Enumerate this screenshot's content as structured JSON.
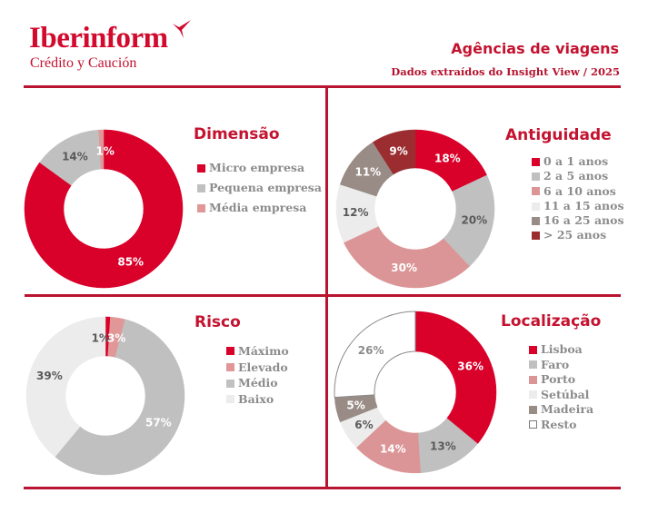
{
  "header": {
    "brand": "Iberinform",
    "brand_sub": "Crédito y Caución",
    "logo_icon": "bird-arrow-icon",
    "title": "Agências de viagens",
    "subtitle": "Dados extraídos do Insight View / 2025"
  },
  "colors": {
    "brand_red": "#d20a2e",
    "rule": "#b8132f",
    "legend_text": "#8c8c8c"
  },
  "chart_data": [
    {
      "id": "dimensao",
      "type": "pie",
      "donut": true,
      "title": "Dimensão",
      "legend_position": "right",
      "categories": [
        "Micro empresa",
        "Pequena empresa",
        "Média empresa"
      ],
      "values": [
        85,
        14,
        1
      ],
      "labels": [
        "85%",
        "14%",
        "1%"
      ],
      "colors": [
        "#d9002a",
        "#c0c0c0",
        "#e19797"
      ],
      "label_colors": [
        "#ffffff",
        "#5a5a5a",
        "#ffffff"
      ]
    },
    {
      "id": "antiguidade",
      "type": "pie",
      "donut": true,
      "title": "Antiguidade",
      "legend_position": "right",
      "categories": [
        "0 a 1 anos",
        "2 a 5 anos",
        "6 a 10 anos",
        "11 a 15 anos",
        "16 a 25 anos",
        "> 25 anos"
      ],
      "values": [
        18,
        20,
        30,
        12,
        11,
        9
      ],
      "labels": [
        "18%",
        "20%",
        "30%",
        "12%",
        "11%",
        "9%"
      ],
      "colors": [
        "#d9002a",
        "#c0c0c0",
        "#dc9596",
        "#ececec",
        "#998c86",
        "#9b2c30"
      ],
      "label_colors": [
        "#ffffff",
        "#5a5a5a",
        "#ffffff",
        "#5a5a5a",
        "#ffffff",
        "#ffffff"
      ]
    },
    {
      "id": "risco",
      "type": "pie",
      "donut": true,
      "title": "Risco",
      "legend_position": "right",
      "categories": [
        "Máximo",
        "Elevado",
        "Médio",
        "Baixo"
      ],
      "values": [
        1,
        3,
        57,
        39
      ],
      "labels": [
        "1%",
        "3%",
        "57%",
        "39%"
      ],
      "colors": [
        "#d9002a",
        "#e19797",
        "#c0c0c0",
        "#ececec"
      ],
      "label_colors": [
        "#5a5a5a",
        "#ffffff",
        "#ffffff",
        "#5a5a5a"
      ]
    },
    {
      "id": "localizacao",
      "type": "pie",
      "donut": true,
      "title": "Localização",
      "legend_position": "right",
      "categories": [
        "Lisboa",
        "Faro",
        "Porto",
        "Setúbal",
        "Madeira",
        "Resto"
      ],
      "values": [
        36,
        13,
        14,
        6,
        5,
        26
      ],
      "labels": [
        "36%",
        "13%",
        "14%",
        "6%",
        "5%",
        "26%"
      ],
      "colors": [
        "#d9002a",
        "#c0c0c0",
        "#dc9596",
        "#ececec",
        "#998c86",
        "#ffffff"
      ],
      "label_colors": [
        "#ffffff",
        "#5a5a5a",
        "#ffffff",
        "#5a5a5a",
        "#ffffff",
        "#8c8c8c"
      ]
    }
  ]
}
